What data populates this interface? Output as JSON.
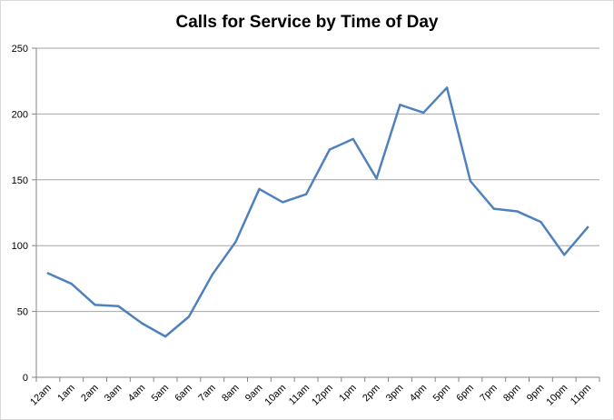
{
  "chart_data": {
    "type": "line",
    "title": "Calls for Service by Time of Day",
    "xlabel": "",
    "ylabel": "",
    "categories": [
      "12am",
      "1am",
      "2am",
      "3am",
      "4am",
      "5am",
      "6am",
      "7am",
      "8am",
      "9am",
      "10am",
      "11am",
      "12pm",
      "1pm",
      "2pm",
      "3pm",
      "4pm",
      "5pm",
      "6pm",
      "7pm",
      "8pm",
      "9pm",
      "10pm",
      "11pm"
    ],
    "series": [
      {
        "values": [
          79,
          71,
          55,
          54,
          41,
          31,
          46,
          78,
          103,
          143,
          133,
          139,
          173,
          181,
          151,
          207,
          201,
          220,
          149,
          128,
          126,
          118,
          93,
          114
        ]
      }
    ],
    "ylim": [
      0,
      250
    ],
    "yticks": [
      "0",
      "50",
      "100",
      "150",
      "200",
      "250"
    ],
    "grid": true,
    "legend": "none",
    "colors": {
      "line": "#4f81bd",
      "grid": "#a6a6a6",
      "axis": "#868686"
    }
  }
}
